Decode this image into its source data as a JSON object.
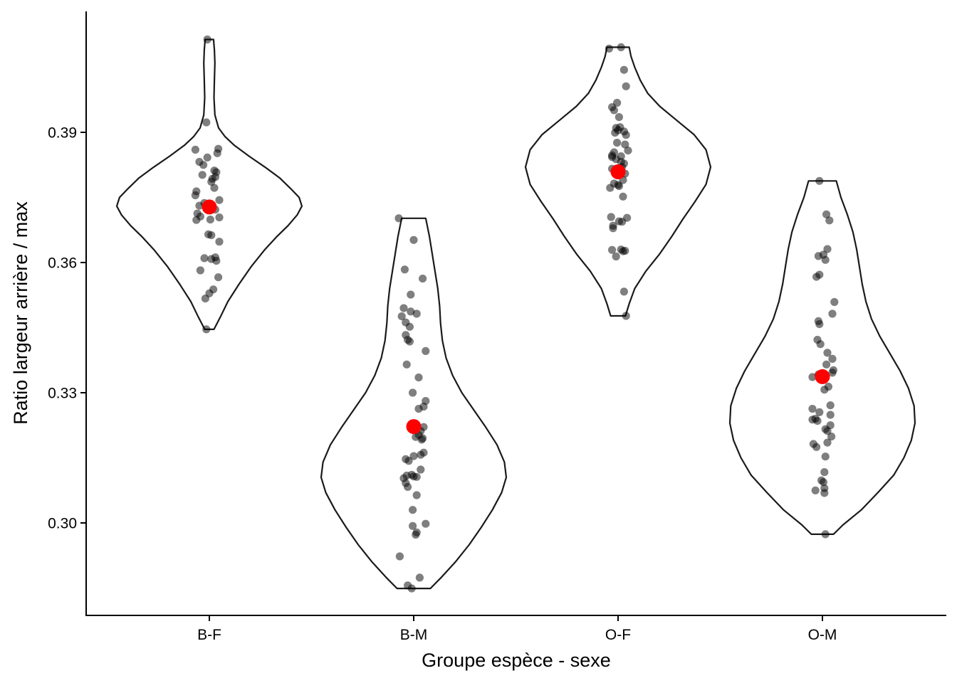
{
  "chart_data": {
    "type": "violin",
    "xlabel": "Groupe espèce - sexe",
    "ylabel": "Ratio largeur arrière / max",
    "categories": [
      "B-F",
      "B-M",
      "O-F",
      "O-M"
    ],
    "yticks": [
      0.3,
      0.33,
      0.36,
      0.39
    ],
    "ytick_labels": [
      "0.30",
      "0.33",
      "0.36",
      "0.39"
    ],
    "ylim": [
      0.278,
      0.417
    ],
    "grid": false,
    "legend": "none",
    "colors": {
      "points": "#000000",
      "point_opacity": 0.5,
      "mean": "#ff0000",
      "violin_stroke": "#1a1a1a"
    },
    "groups": [
      {
        "name": "B-F",
        "mean": 0.3728,
        "min": 0.3446,
        "max": 0.4114,
        "density": [
          [
            0.3446,
            0.05
          ],
          [
            0.3475,
            0.12
          ],
          [
            0.351,
            0.2
          ],
          [
            0.355,
            0.32
          ],
          [
            0.359,
            0.45
          ],
          [
            0.363,
            0.6
          ],
          [
            0.366,
            0.73
          ],
          [
            0.3685,
            0.85
          ],
          [
            0.371,
            0.95
          ],
          [
            0.373,
            1.0
          ],
          [
            0.375,
            0.97
          ],
          [
            0.377,
            0.88
          ],
          [
            0.3795,
            0.76
          ],
          [
            0.382,
            0.6
          ],
          [
            0.3845,
            0.43
          ],
          [
            0.387,
            0.27
          ],
          [
            0.389,
            0.17
          ],
          [
            0.391,
            0.1
          ],
          [
            0.394,
            0.06
          ],
          [
            0.398,
            0.05
          ],
          [
            0.402,
            0.055
          ],
          [
            0.406,
            0.06
          ],
          [
            0.409,
            0.055
          ],
          [
            0.4114,
            0.045
          ]
        ],
        "points": [
          [
            0.4114,
            -0.02
          ],
          [
            0.3923,
            -0.03
          ],
          [
            0.3862,
            0.09
          ],
          [
            0.386,
            -0.14
          ],
          [
            0.3852,
            0.08
          ],
          [
            0.3842,
            -0.02
          ],
          [
            0.3832,
            -0.1
          ],
          [
            0.3825,
            -0.06
          ],
          [
            0.3812,
            0.05
          ],
          [
            0.3808,
            0.07
          ],
          [
            0.3802,
            -0.07
          ],
          [
            0.3797,
            0.06
          ],
          [
            0.3793,
            0.03
          ],
          [
            0.3786,
            0.02
          ],
          [
            0.3772,
            0.05
          ],
          [
            0.3764,
            -0.13
          ],
          [
            0.3755,
            -0.14
          ],
          [
            0.3744,
            0.1
          ],
          [
            0.3737,
            -0.05
          ],
          [
            0.3731,
            -0.1
          ],
          [
            0.3722,
            0.06
          ],
          [
            0.3713,
            -0.12
          ],
          [
            0.3706,
            -0.09
          ],
          [
            0.3704,
            0.1
          ],
          [
            0.3699,
            0.01
          ],
          [
            0.3698,
            -0.13
          ],
          [
            0.3665,
            -0.01
          ],
          [
            0.3663,
            0.02
          ],
          [
            0.3648,
            0.1
          ],
          [
            0.3612,
            0.06
          ],
          [
            0.361,
            -0.05
          ],
          [
            0.3608,
            0.02
          ],
          [
            0.3604,
            0.07
          ],
          [
            0.3582,
            -0.09
          ],
          [
            0.3566,
            0.09
          ],
          [
            0.3538,
            0.04
          ],
          [
            0.3529,
            0.0
          ],
          [
            0.3517,
            -0.04
          ],
          [
            0.3446,
            -0.03
          ]
        ]
      },
      {
        "name": "B-M",
        "mean": 0.3222,
        "min": 0.2849,
        "max": 0.3702,
        "density": [
          [
            0.2849,
            0.18
          ],
          [
            0.2875,
            0.3
          ],
          [
            0.291,
            0.45
          ],
          [
            0.295,
            0.6
          ],
          [
            0.299,
            0.73
          ],
          [
            0.303,
            0.85
          ],
          [
            0.307,
            0.95
          ],
          [
            0.3105,
            1.0
          ],
          [
            0.314,
            0.98
          ],
          [
            0.318,
            0.9
          ],
          [
            0.322,
            0.78
          ],
          [
            0.326,
            0.65
          ],
          [
            0.33,
            0.52
          ],
          [
            0.334,
            0.42
          ],
          [
            0.338,
            0.35
          ],
          [
            0.342,
            0.31
          ],
          [
            0.346,
            0.29
          ],
          [
            0.35,
            0.28
          ],
          [
            0.354,
            0.26
          ],
          [
            0.358,
            0.23
          ],
          [
            0.362,
            0.2
          ],
          [
            0.366,
            0.17
          ],
          [
            0.3702,
            0.13
          ]
        ],
        "points": [
          [
            0.3702,
            -0.15
          ],
          [
            0.3652,
            0.0
          ],
          [
            0.3584,
            -0.09
          ],
          [
            0.3563,
            0.09
          ],
          [
            0.3526,
            -0.03
          ],
          [
            0.3495,
            -0.1
          ],
          [
            0.3487,
            -0.03
          ],
          [
            0.3482,
            0.03
          ],
          [
            0.3476,
            -0.12
          ],
          [
            0.3462,
            -0.08
          ],
          [
            0.3452,
            -0.04
          ],
          [
            0.3433,
            -0.08
          ],
          [
            0.3422,
            -0.06
          ],
          [
            0.3418,
            -0.04
          ],
          [
            0.3396,
            0.12
          ],
          [
            0.3365,
            -0.07
          ],
          [
            0.3335,
            0.05
          ],
          [
            0.33,
            -0.01
          ],
          [
            0.3281,
            0.12
          ],
          [
            0.3268,
            0.1
          ],
          [
            0.3263,
            0.05
          ],
          [
            0.3221,
            0.1
          ],
          [
            0.3212,
            0.07
          ],
          [
            0.3203,
            0.05
          ],
          [
            0.3198,
            0.02
          ],
          [
            0.3195,
            0.09
          ],
          [
            0.3192,
            0.08
          ],
          [
            0.3162,
            0.1
          ],
          [
            0.3157,
            0.07
          ],
          [
            0.3154,
            0.0
          ],
          [
            0.3147,
            -0.08
          ],
          [
            0.3143,
            -0.05
          ],
          [
            0.3123,
            0.07
          ],
          [
            0.3111,
            -0.02
          ],
          [
            0.3109,
            -0.07
          ],
          [
            0.3107,
            0.0
          ],
          [
            0.3106,
            0.03
          ],
          [
            0.3103,
            -0.1
          ],
          [
            0.3092,
            -0.08
          ],
          [
            0.3083,
            -0.06
          ],
          [
            0.3064,
            0.03
          ],
          [
            0.303,
            -0.01
          ],
          [
            0.2998,
            0.12
          ],
          [
            0.2993,
            -0.01
          ],
          [
            0.2978,
            0.03
          ],
          [
            0.2973,
            0.02
          ],
          [
            0.2923,
            -0.14
          ],
          [
            0.2874,
            0.06
          ],
          [
            0.2856,
            -0.06
          ],
          [
            0.2849,
            -0.02
          ]
        ]
      },
      {
        "name": "O-F",
        "mean": 0.3809,
        "min": 0.3477,
        "max": 0.4096,
        "density": [
          [
            0.3477,
            0.08
          ],
          [
            0.3505,
            0.12
          ],
          [
            0.354,
            0.18
          ],
          [
            0.358,
            0.3
          ],
          [
            0.362,
            0.45
          ],
          [
            0.366,
            0.58
          ],
          [
            0.37,
            0.7
          ],
          [
            0.374,
            0.83
          ],
          [
            0.378,
            0.95
          ],
          [
            0.382,
            1.0
          ],
          [
            0.386,
            0.95
          ],
          [
            0.3895,
            0.82
          ],
          [
            0.393,
            0.62
          ],
          [
            0.396,
            0.45
          ],
          [
            0.399,
            0.32
          ],
          [
            0.402,
            0.24
          ],
          [
            0.405,
            0.18
          ],
          [
            0.4075,
            0.14
          ],
          [
            0.4096,
            0.12
          ]
        ],
        "points": [
          [
            0.4096,
            0.03
          ],
          [
            0.4093,
            -0.09
          ],
          [
            0.4044,
            0.06
          ],
          [
            0.4006,
            0.08
          ],
          [
            0.3968,
            -0.01
          ],
          [
            0.3958,
            -0.06
          ],
          [
            0.3951,
            -0.04
          ],
          [
            0.3935,
            0.01
          ],
          [
            0.3912,
            0.02
          ],
          [
            0.391,
            -0.02
          ],
          [
            0.3905,
            0.0
          ],
          [
            0.3902,
            0.06
          ],
          [
            0.3899,
            -0.03
          ],
          [
            0.3894,
            0.08
          ],
          [
            0.3876,
            -0.01
          ],
          [
            0.3872,
            0.07
          ],
          [
            0.3858,
            0.1
          ],
          [
            0.3854,
            -0.04
          ],
          [
            0.3847,
            -0.06
          ],
          [
            0.3845,
            0.03
          ],
          [
            0.3843,
            -0.06
          ],
          [
            0.3838,
            -0.02
          ],
          [
            0.3832,
            0.03
          ],
          [
            0.3828,
            0.06
          ],
          [
            0.382,
            0.04
          ],
          [
            0.3816,
            -0.06
          ],
          [
            0.3805,
            0.07
          ],
          [
            0.379,
            0.05
          ],
          [
            0.3782,
            -0.04
          ],
          [
            0.3779,
            0.0
          ],
          [
            0.3776,
            0.01
          ],
          [
            0.3772,
            -0.08
          ],
          [
            0.3752,
            0.05
          ],
          [
            0.3705,
            -0.07
          ],
          [
            0.3703,
            0.09
          ],
          [
            0.3695,
            0.01
          ],
          [
            0.3694,
            0.04
          ],
          [
            0.3685,
            -0.05
          ],
          [
            0.3679,
            -0.05
          ],
          [
            0.363,
            0.03
          ],
          [
            0.3629,
            -0.06
          ],
          [
            0.3627,
            0.07
          ],
          [
            0.3626,
            0.05
          ],
          [
            0.3614,
            -0.02
          ],
          [
            0.3533,
            0.06
          ],
          [
            0.3477,
            0.08
          ]
        ]
      },
      {
        "name": "O-M",
        "mean": 0.3337,
        "min": 0.2974,
        "max": 0.3788,
        "density": [
          [
            0.2974,
            0.12
          ],
          [
            0.2995,
            0.22
          ],
          [
            0.303,
            0.42
          ],
          [
            0.307,
            0.6
          ],
          [
            0.311,
            0.77
          ],
          [
            0.315,
            0.88
          ],
          [
            0.319,
            0.96
          ],
          [
            0.323,
            1.0
          ],
          [
            0.327,
            0.99
          ],
          [
            0.331,
            0.93
          ],
          [
            0.335,
            0.84
          ],
          [
            0.339,
            0.73
          ],
          [
            0.343,
            0.62
          ],
          [
            0.347,
            0.53
          ],
          [
            0.351,
            0.47
          ],
          [
            0.355,
            0.43
          ],
          [
            0.359,
            0.4
          ],
          [
            0.363,
            0.37
          ],
          [
            0.367,
            0.33
          ],
          [
            0.371,
            0.27
          ],
          [
            0.375,
            0.2
          ],
          [
            0.3788,
            0.15
          ]
        ],
        "points": [
          [
            0.3788,
            -0.03
          ],
          [
            0.3711,
            0.04
          ],
          [
            0.3697,
            0.07
          ],
          [
            0.3631,
            0.05
          ],
          [
            0.3618,
            0.01
          ],
          [
            0.3615,
            -0.04
          ],
          [
            0.3606,
            0.03
          ],
          [
            0.3572,
            -0.03
          ],
          [
            0.3567,
            -0.06
          ],
          [
            0.3509,
            0.12
          ],
          [
            0.3482,
            0.1
          ],
          [
            0.3465,
            -0.04
          ],
          [
            0.3458,
            -0.03
          ],
          [
            0.3422,
            -0.05
          ],
          [
            0.3412,
            -0.02
          ],
          [
            0.3392,
            0.05
          ],
          [
            0.3378,
            0.1
          ],
          [
            0.3365,
            0.04
          ],
          [
            0.3352,
            0.11
          ],
          [
            0.3346,
            0.1
          ],
          [
            0.3342,
            -0.04
          ],
          [
            0.3336,
            -0.1
          ],
          [
            0.3314,
            0.06
          ],
          [
            0.3307,
            0.02
          ],
          [
            0.3271,
            0.08
          ],
          [
            0.3263,
            -0.1
          ],
          [
            0.3255,
            -0.03
          ],
          [
            0.3249,
            0.08
          ],
          [
            0.324,
            -0.07
          ],
          [
            0.3238,
            -0.1
          ],
          [
            0.3235,
            -0.05
          ],
          [
            0.3225,
            0.08
          ],
          [
            0.3216,
            0.03
          ],
          [
            0.3212,
            0.05
          ],
          [
            0.3199,
            0.09
          ],
          [
            0.3185,
            0.05
          ],
          [
            0.3182,
            -0.09
          ],
          [
            0.3175,
            -0.06
          ],
          [
            0.3153,
            0.03
          ],
          [
            0.3117,
            0.02
          ],
          [
            0.3098,
            -0.01
          ],
          [
            0.3094,
            0.01
          ],
          [
            0.308,
            0.02
          ],
          [
            0.3075,
            -0.07
          ],
          [
            0.3069,
            0.02
          ],
          [
            0.2974,
            0.03
          ]
        ]
      }
    ]
  }
}
